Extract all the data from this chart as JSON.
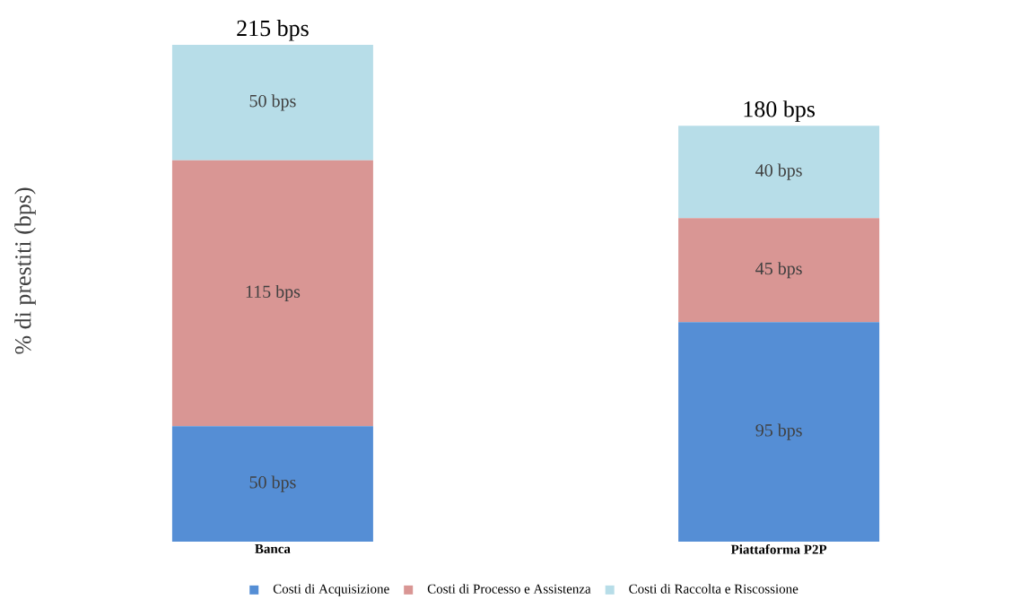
{
  "chart_data": {
    "type": "bar",
    "stacked": true,
    "ylabel": "% di prestiti (bps)",
    "categories": [
      "Banca",
      "Piattaforma P2P"
    ],
    "series": [
      {
        "name": "Costi di Acquisizione",
        "color": "#558ed5",
        "values": [
          50,
          95
        ],
        "value_labels": [
          "50 bps",
          "95 bps"
        ]
      },
      {
        "name": "Costi di Processo e Assistenza",
        "color": "#d99694",
        "values": [
          115,
          45
        ],
        "value_labels": [
          "115 bps",
          "45 bps"
        ]
      },
      {
        "name": "Costi di Raccolta e Riscossione",
        "color": "#b7dde8",
        "values": [
          50,
          40
        ],
        "value_labels": [
          "50 bps",
          "40 bps"
        ]
      }
    ],
    "totals": [
      "215 bps",
      "180 bps"
    ],
    "legend": "bottom"
  }
}
